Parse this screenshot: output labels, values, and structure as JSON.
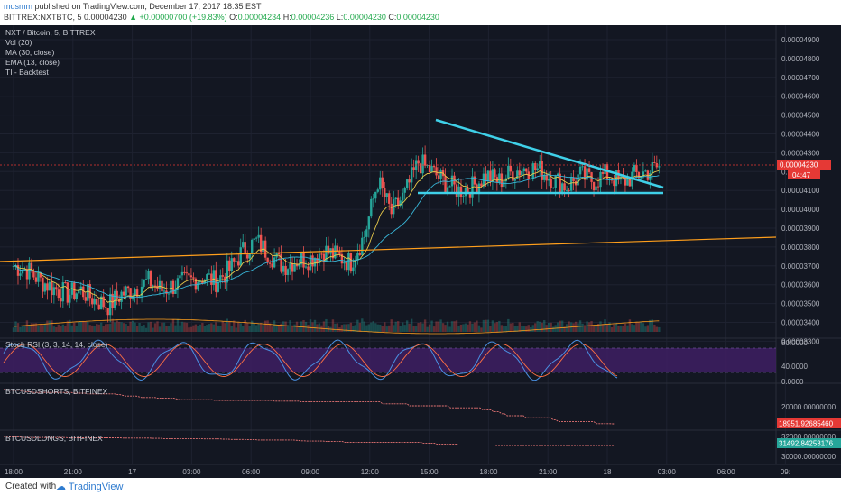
{
  "header": {
    "author": "mdsmm",
    "published_text": "published on TradingView.com, December 17, 2017 18:35 EST",
    "symbol": "BITTREX:NXTBTC, 5",
    "last": "0.00004230",
    "change": "▲ +0.00000700 (+19.83%)",
    "o_label": "O:",
    "o": "0.00004234",
    "h_label": "H:",
    "h": "0.00004236",
    "l_label": "L:",
    "l": "0.00004230",
    "c_label": "C:",
    "c": "0.00004230"
  },
  "indicators": {
    "main_title": "NXT / Bitcoin, 5, BITTREX",
    "vol": "Vol (20)",
    "ma": "MA (30, close)",
    "ema": "EMA (13, close)",
    "ti": "TI - Backtest",
    "stoch": "Stoch RSI (3, 3, 14, 14, close)",
    "shorts": "BTCUSDSHORTS, BITFINEX",
    "longs": "BTCUSDLONGS, BITFINEX"
  },
  "badges": {
    "price": "0.00004230",
    "countdown": "04:47",
    "shorts": "18951.92685460",
    "longs": "31492.84253176"
  },
  "footer": {
    "created_with": "Created with",
    "brand": "TradingView"
  },
  "colors": {
    "background": "#131722",
    "up": "#26a69a",
    "down": "#ef5350",
    "trendline": "#3fd0e8",
    "support": "#ff9f1c",
    "stoch_band": "#5b2a86",
    "badge_red": "#e53935",
    "badge_green": "#26a69a"
  },
  "chart_data": [
    {
      "type": "candlestick",
      "title": "NXT / Bitcoin, 5, BITTREX",
      "ylim": [
        3.25e-05,
        4.99e-05
      ],
      "yticks": [
        "0.00004900",
        "0.00004800",
        "0.00004700",
        "0.00004600",
        "0.00004500",
        "0.00004400",
        "0.00004300",
        "0.00004200",
        "0.00004100",
        "0.00004000",
        "0.00003900",
        "0.00003800",
        "0.00003700",
        "0.00003600",
        "0.00003500",
        "0.00003400",
        "0.00003300"
      ],
      "xticks": [
        "18:00",
        "21:00",
        "17",
        "03:00",
        "06:00",
        "09:00",
        "12:00",
        "15:00",
        "18:00",
        "21:00",
        "18",
        "03:00",
        "06:00",
        "09:"
      ],
      "series_close_approx": [
        [
          0,
          3.7e-05
        ],
        [
          0.5,
          3.68e-05
        ],
        [
          1,
          3.62e-05
        ],
        [
          1.5,
          3.58e-05
        ],
        [
          2,
          3.55e-05
        ],
        [
          2.5,
          3.57e-05
        ],
        [
          3,
          3.52e-05
        ],
        [
          3.5,
          3.49e-05
        ],
        [
          4,
          3.55e-05
        ],
        [
          4.5,
          3.58e-05
        ],
        [
          5,
          3.62e-05
        ],
        [
          5.5,
          3.57e-05
        ],
        [
          6,
          3.6e-05
        ],
        [
          6.5,
          3.62e-05
        ],
        [
          7,
          3.64e-05
        ],
        [
          7.5,
          3.62e-05
        ],
        [
          8,
          3.68e-05
        ],
        [
          8.5,
          3.78e-05
        ],
        [
          9,
          3.83e-05
        ],
        [
          9.5,
          3.76e-05
        ],
        [
          10,
          3.7e-05
        ],
        [
          10.5,
          3.73e-05
        ],
        [
          11,
          3.74e-05
        ],
        [
          11.5,
          3.78e-05
        ],
        [
          12,
          3.75e-05
        ],
        [
          12.5,
          3.72e-05
        ],
        [
          13,
          3.86e-05
        ],
        [
          13.5,
          4.15e-05
        ],
        [
          14,
          3.98e-05
        ],
        [
          14.5,
          4.08e-05
        ],
        [
          15,
          4.25e-05
        ],
        [
          15.5,
          4.2e-05
        ],
        [
          16,
          4.14e-05
        ],
        [
          16.5,
          4.1e-05
        ],
        [
          17,
          4.12e-05
        ],
        [
          17.5,
          4.18e-05
        ],
        [
          18,
          4.15e-05
        ],
        [
          18.5,
          4.2e-05
        ],
        [
          19,
          4.22e-05
        ],
        [
          19.5,
          4.21e-05
        ],
        [
          20,
          4.16e-05
        ],
        [
          20.5,
          4.12e-05
        ],
        [
          21,
          4.18e-05
        ],
        [
          21.5,
          4.15e-05
        ],
        [
          22,
          4.19e-05
        ],
        [
          22.5,
          4.14e-05
        ],
        [
          23,
          4.18e-05
        ],
        [
          23.5,
          4.2e-05
        ],
        [
          24,
          4.23e-05
        ]
      ],
      "trendline_descending": [
        [
          15,
          4.49e-05
        ],
        [
          25,
          4.11e-05
        ]
      ],
      "support_horizontal": [
        [
          15,
          4.08e-05
        ],
        [
          25,
          4.08e-05
        ]
      ],
      "support_rising": [
        [
          0,
          3.73e-05
        ],
        [
          30,
          3.84e-05
        ]
      ]
    },
    {
      "type": "line",
      "title": "Stoch RSI (3, 3, 14, 14, close)",
      "yticks": [
        "80.0000",
        "40.0000",
        "0.0000"
      ],
      "ylim": [
        0,
        100
      ],
      "band": [
        20,
        80
      ]
    },
    {
      "type": "line",
      "title": "BTCUSDSHORTS, BITFINEX",
      "yticks": [
        "20000.00000000"
      ],
      "last": 18951.9268546
    },
    {
      "type": "line",
      "title": "BTCUSDLONGS, BITFINEX",
      "yticks": [
        "32000.00000000",
        "30000.00000000"
      ],
      "last": 31492.84253176
    }
  ]
}
